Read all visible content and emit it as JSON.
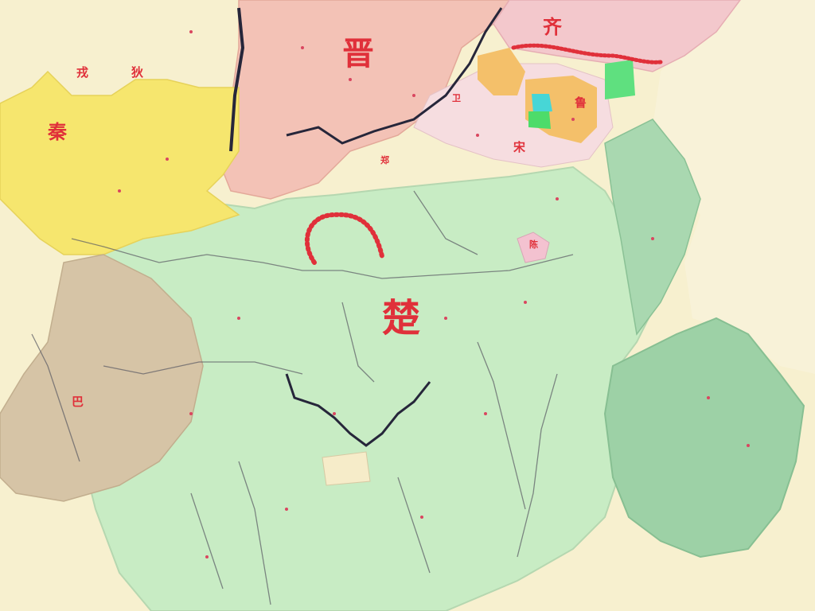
{
  "map": {
    "states": {
      "jin": "晋",
      "qi": "齐",
      "qin": "秦",
      "chu": "楚",
      "ba": "巴",
      "song": "宋",
      "lu": "鲁",
      "wei": "卫",
      "zheng": "郑",
      "chen": "陈",
      "rong": "戎",
      "di": "狄"
    },
    "colors": {
      "background": "#f7f0cf",
      "chu": "#c8ecc4",
      "jin": "#f3c2b6",
      "qin": "#f6e66e",
      "ba": "#d6c4a6",
      "qi": "#f3c8cc",
      "wu_yue": "#9dd1a6",
      "rivers": "#3b3b46",
      "borders": "#e0303a"
    }
  }
}
